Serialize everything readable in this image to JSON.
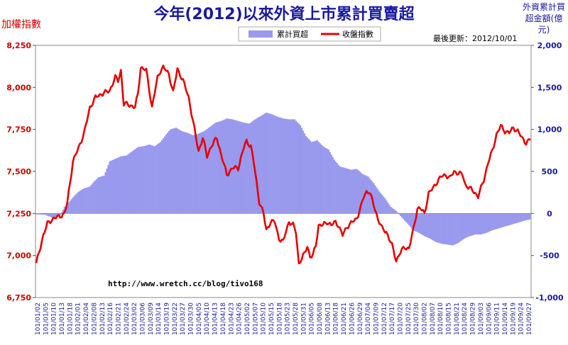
{
  "chart_data": {
    "type": "bar+line",
    "title": "今年(2012)以來外資上市累計買賣超",
    "ylabel_left": "加權指數",
    "ylabel_right": "外資累計買超金額(億元)",
    "updated": "最後更新：2012/10/01",
    "watermark": "http://www.wretch.cc/blog/tivo168",
    "legend": [
      "累計買超",
      "收盤指數"
    ],
    "colors": {
      "bar": "#9999ee",
      "line": "#e60000",
      "title": "#1a1aa0",
      "left_axis": "#cc0000"
    },
    "ylim_left": [
      6750,
      8250
    ],
    "ylim_right": [
      -1000,
      2000
    ],
    "y_ticks_left": [
      "8,250",
      "8,000",
      "7,750",
      "7,500",
      "7,250",
      "7,000",
      "6,750"
    ],
    "y_ticks_right": [
      "2,000",
      "1,500",
      "1,000",
      "500",
      "0",
      "-500",
      "-1,000"
    ],
    "x_tick_labels": [
      "101/01/02",
      "101/01/05",
      "101/01/10",
      "101/01/13",
      "101/01/18",
      "101/02/01",
      "101/02/04",
      "101/02/08",
      "101/02/13",
      "101/02/16",
      "101/02/21",
      "101/02/24",
      "101/03/02",
      "101/03/06",
      "101/03/09",
      "101/03/14",
      "101/03/19",
      "101/03/22",
      "101/03/27",
      "101/03/30",
      "101/04/05",
      "101/04/10",
      "101/04/13",
      "101/04/18",
      "101/04/23",
      "101/04/26",
      "101/05/02",
      "101/05/07",
      "101/05/10",
      "101/05/15",
      "101/05/18",
      "101/05/23",
      "101/05/28",
      "101/05/31",
      "101/06/05",
      "101/06/08",
      "101/06/13",
      "101/06/18",
      "101/06/21",
      "101/06/26",
      "101/06/29",
      "101/07/04",
      "101/07/09",
      "101/07/12",
      "101/07/17",
      "101/07/20",
      "101/07/25",
      "101/07/30",
      "101/08/02",
      "101/08/07",
      "101/08/10",
      "101/08/15",
      "101/08/21",
      "101/08/24",
      "101/08/29",
      "101/09/03",
      "101/09/06",
      "101/09/11",
      "101/09/14",
      "101/09/19",
      "101/09/24",
      "101/09/27"
    ],
    "index_anchors": [
      [
        0,
        6950
      ],
      [
        5,
        7120
      ],
      [
        8,
        7190
      ],
      [
        12,
        7220
      ],
      [
        16,
        7230
      ],
      [
        20,
        7250
      ],
      [
        22,
        7310
      ],
      [
        26,
        7560
      ],
      [
        30,
        7640
      ],
      [
        34,
        7730
      ],
      [
        38,
        7880
      ],
      [
        42,
        7940
      ],
      [
        46,
        7960
      ],
      [
        52,
        7980
      ],
      [
        56,
        8060
      ],
      [
        58,
        8040
      ],
      [
        60,
        8100
      ],
      [
        62,
        7900
      ],
      [
        65,
        7900
      ],
      [
        70,
        7880
      ],
      [
        72,
        7960
      ],
      [
        74,
        8120
      ],
      [
        78,
        8100
      ],
      [
        82,
        7880
      ],
      [
        86,
        8060
      ],
      [
        88,
        8100
      ],
      [
        90,
        8120
      ],
      [
        94,
        8080
      ],
      [
        97,
        7970
      ],
      [
        100,
        8110
      ],
      [
        104,
        8040
      ],
      [
        108,
        7940
      ],
      [
        111,
        7800
      ],
      [
        115,
        7620
      ],
      [
        118,
        7700
      ],
      [
        121,
        7590
      ],
      [
        124,
        7650
      ],
      [
        128,
        7700
      ],
      [
        131,
        7600
      ],
      [
        135,
        7480
      ],
      [
        139,
        7520
      ],
      [
        143,
        7520
      ],
      [
        147,
        7640
      ],
      [
        149,
        7680
      ],
      [
        152,
        7650
      ],
      [
        154,
        7560
      ],
      [
        158,
        7320
      ],
      [
        161,
        7250
      ],
      [
        163,
        7150
      ],
      [
        166,
        7200
      ],
      [
        169,
        7200
      ],
      [
        172,
        7100
      ],
      [
        175,
        7080
      ],
      [
        177,
        7150
      ],
      [
        179,
        7200
      ],
      [
        182,
        7180
      ],
      [
        184,
        7140
      ],
      [
        186,
        6950
      ],
      [
        188,
        6980
      ],
      [
        190,
        7010
      ],
      [
        192,
        7060
      ],
      [
        194,
        6990
      ],
      [
        196,
        7000
      ],
      [
        198,
        7060
      ],
      [
        200,
        7180
      ],
      [
        203,
        7180
      ],
      [
        206,
        7200
      ],
      [
        209,
        7180
      ],
      [
        212,
        7200
      ],
      [
        214,
        7180
      ],
      [
        217,
        7120
      ],
      [
        220,
        7170
      ],
      [
        224,
        7200
      ],
      [
        227,
        7220
      ],
      [
        230,
        7290
      ],
      [
        232,
        7350
      ],
      [
        234,
        7380
      ],
      [
        236,
        7380
      ],
      [
        239,
        7300
      ],
      [
        242,
        7220
      ],
      [
        245,
        7160
      ],
      [
        248,
        7140
      ],
      [
        250,
        7100
      ],
      [
        252,
        7060
      ],
      [
        255,
        6970
      ],
      [
        258,
        7020
      ],
      [
        261,
        7050
      ],
      [
        264,
        7040
      ],
      [
        267,
        7150
      ],
      [
        270,
        7280
      ],
      [
        272,
        7280
      ],
      [
        275,
        7250
      ],
      [
        278,
        7370
      ],
      [
        281,
        7400
      ],
      [
        284,
        7440
      ],
      [
        287,
        7470
      ],
      [
        290,
        7480
      ],
      [
        293,
        7460
      ],
      [
        296,
        7500
      ],
      [
        299,
        7490
      ],
      [
        302,
        7480
      ],
      [
        304,
        7420
      ],
      [
        307,
        7400
      ],
      [
        310,
        7380
      ],
      [
        313,
        7350
      ],
      [
        317,
        7450
      ],
      [
        320,
        7550
      ],
      [
        323,
        7620
      ],
      [
        326,
        7720
      ],
      [
        329,
        7770
      ],
      [
        332,
        7740
      ],
      [
        335,
        7730
      ],
      [
        338,
        7760
      ],
      [
        341,
        7740
      ],
      [
        344,
        7700
      ],
      [
        347,
        7670
      ],
      [
        350,
        7690
      ]
    ],
    "net_buy_anchors": [
      [
        0,
        -10
      ],
      [
        6,
        -15
      ],
      [
        10,
        -40
      ],
      [
        13,
        -60
      ],
      [
        17,
        -20
      ],
      [
        20,
        80
      ],
      [
        24,
        150
      ],
      [
        27,
        210
      ],
      [
        30,
        260
      ],
      [
        34,
        300
      ],
      [
        38,
        320
      ],
      [
        41,
        380
      ],
      [
        44,
        430
      ],
      [
        48,
        450
      ],
      [
        52,
        620
      ],
      [
        56,
        650
      ],
      [
        60,
        680
      ],
      [
        64,
        690
      ],
      [
        68,
        740
      ],
      [
        72,
        790
      ],
      [
        76,
        800
      ],
      [
        80,
        820
      ],
      [
        84,
        800
      ],
      [
        88,
        850
      ],
      [
        92,
        940
      ],
      [
        95,
        1000
      ],
      [
        99,
        1020
      ],
      [
        103,
        980
      ],
      [
        107,
        960
      ],
      [
        111,
        930
      ],
      [
        115,
        950
      ],
      [
        119,
        980
      ],
      [
        123,
        1030
      ],
      [
        127,
        1080
      ],
      [
        131,
        1100
      ],
      [
        135,
        1130
      ],
      [
        139,
        1120
      ],
      [
        143,
        1100
      ],
      [
        147,
        1080
      ],
      [
        151,
        1070
      ],
      [
        155,
        1120
      ],
      [
        159,
        1160
      ],
      [
        163,
        1200
      ],
      [
        167,
        1180
      ],
      [
        171,
        1150
      ],
      [
        175,
        1130
      ],
      [
        179,
        1120
      ],
      [
        183,
        1120
      ],
      [
        187,
        1050
      ],
      [
        191,
        920
      ],
      [
        195,
        850
      ],
      [
        199,
        870
      ],
      [
        203,
        800
      ],
      [
        207,
        760
      ],
      [
        211,
        640
      ],
      [
        215,
        560
      ],
      [
        219,
        540
      ],
      [
        223,
        520
      ],
      [
        227,
        530
      ],
      [
        231,
        470
      ],
      [
        235,
        440
      ],
      [
        239,
        360
      ],
      [
        243,
        260
      ],
      [
        247,
        180
      ],
      [
        251,
        80
      ],
      [
        255,
        30
      ],
      [
        259,
        -50
      ],
      [
        263,
        -120
      ],
      [
        267,
        -200
      ],
      [
        271,
        -230
      ],
      [
        275,
        -270
      ],
      [
        279,
        -300
      ],
      [
        283,
        -340
      ],
      [
        287,
        -360
      ],
      [
        291,
        -370
      ],
      [
        295,
        -380
      ],
      [
        299,
        -350
      ],
      [
        303,
        -300
      ],
      [
        307,
        -270
      ],
      [
        311,
        -250
      ],
      [
        315,
        -250
      ],
      [
        319,
        -230
      ],
      [
        323,
        -200
      ],
      [
        327,
        -180
      ],
      [
        331,
        -160
      ],
      [
        335,
        -140
      ],
      [
        339,
        -120
      ],
      [
        343,
        -100
      ],
      [
        347,
        -80
      ],
      [
        350,
        -70
      ]
    ],
    "legend_position": "top-center"
  }
}
